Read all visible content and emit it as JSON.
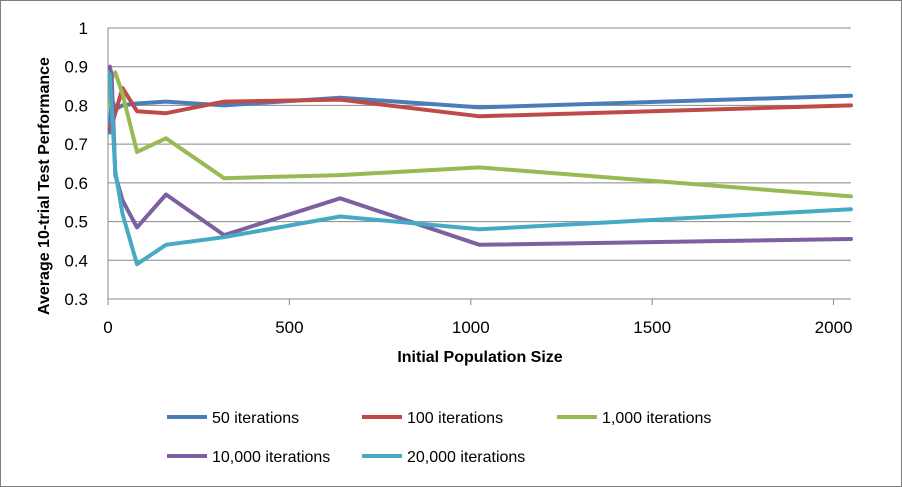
{
  "chart_data": {
    "type": "line",
    "title": "",
    "xlabel": "Initial Population Size",
    "ylabel": "Average 10-trial Test Performance",
    "xlim": [
      0,
      2048
    ],
    "ylim": [
      0.3,
      1
    ],
    "xticks": [
      0,
      500,
      1000,
      1500,
      2000
    ],
    "xtick_labels": [
      "0",
      "500",
      "1000",
      "1500",
      "2000"
    ],
    "yticks": [
      0.3,
      0.4,
      0.5,
      0.6,
      0.7,
      0.8,
      0.9,
      1
    ],
    "ytick_labels": [
      "0.3",
      "0.4",
      "0.5",
      "0.6",
      "0.7",
      "0.8",
      "0.9",
      "1"
    ],
    "grid": "horizontal",
    "legend_position": "bottom",
    "x": [
      5,
      10,
      20,
      40,
      80,
      160,
      320,
      640,
      1024,
      2048
    ],
    "series": [
      {
        "name": "50 iterations",
        "color": "#4a7ebb",
        "values": [
          0.73,
          0.82,
          0.79,
          0.8,
          0.805,
          0.81,
          0.8,
          0.82,
          0.795,
          0.825
        ]
      },
      {
        "name": "100 iterations",
        "color": "#be4b48",
        "values": [
          0.74,
          0.75,
          0.78,
          0.845,
          0.785,
          0.78,
          0.81,
          0.815,
          0.772,
          0.8
        ]
      },
      {
        "name": "1,000 iterations",
        "color": "#98b954",
        "values": [
          0.8,
          0.87,
          0.885,
          0.83,
          0.68,
          0.715,
          0.612,
          0.62,
          0.64,
          0.565
        ]
      },
      {
        "name": "10,000 iterations",
        "color": "#7d60a0",
        "values": [
          0.9,
          0.88,
          0.62,
          0.555,
          0.485,
          0.57,
          0.465,
          0.56,
          0.44,
          0.455
        ]
      },
      {
        "name": "20,000 iterations",
        "color": "#46aac5",
        "values": [
          0.88,
          0.8,
          0.63,
          0.52,
          0.39,
          0.44,
          0.46,
          0.513,
          0.48,
          0.532
        ]
      }
    ]
  }
}
